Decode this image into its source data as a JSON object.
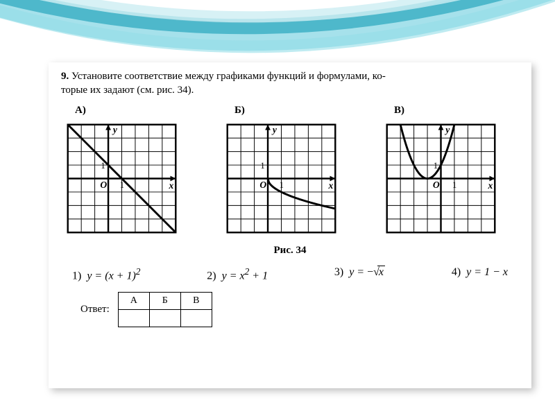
{
  "background": {
    "arc_colors": [
      "#4fbcd0",
      "#2aa6bd",
      "#1a8ba0",
      "#5cc8da"
    ],
    "card_bg": "#ffffff",
    "shadow": "rgba(0,0,0,0.25)"
  },
  "problem": {
    "number": "9.",
    "text_part1": "Установите соответствие между графиками функций и формулами, ко-",
    "text_part2": "торые их задают (см. рис. 34)."
  },
  "figure_caption": "Рис. 34",
  "graphs": {
    "cell_size": 20,
    "grid_cells": 8,
    "grid_color": "#000000",
    "axis_color": "#000000",
    "curve_color": "#000000",
    "curve_width": 3,
    "A": {
      "label": "А)",
      "origin_col": 3,
      "origin_row": 4,
      "curve": {
        "type": "line",
        "slope": -1,
        "intercept": 1,
        "domain": [
          -3,
          5
        ]
      },
      "axis_labels": {
        "x": "x",
        "y": "y",
        "O": "O",
        "tick_x": "1",
        "tick_y": "1"
      }
    },
    "B": {
      "label": "Б)",
      "origin_col": 3,
      "origin_row": 4,
      "curve": {
        "type": "neg_sqrt",
        "domain": [
          0,
          5
        ]
      },
      "axis_labels": {
        "x": "x",
        "y": "y",
        "O": "O",
        "tick_x": "1",
        "tick_y": "1"
      }
    },
    "V": {
      "label": "В)",
      "origin_col": 4,
      "origin_row": 4,
      "curve": {
        "type": "parabola_shifted",
        "h": -1,
        "k": 0,
        "domain": [
          -3.1,
          1.1
        ]
      },
      "axis_labels": {
        "x": "x",
        "y": "y",
        "O": "O",
        "tick_x": "1",
        "tick_y": "1"
      }
    }
  },
  "formulas": {
    "f1": {
      "n": "1)",
      "lhs": "y =",
      "rhs": "(x + 1)",
      "sup": "2"
    },
    "f2": {
      "n": "2)",
      "lhs": "y =",
      "rhs": "x",
      "sup": "2",
      "tail": " + 1"
    },
    "f3": {
      "n": "3)",
      "lhs": "y =",
      "neg": "−",
      "sqrt_of": "x"
    },
    "f4": {
      "n": "4)",
      "lhs": "y =",
      "rhs": "1 − x"
    }
  },
  "answer": {
    "label": "Ответ:",
    "headers": [
      "А",
      "Б",
      "В"
    ],
    "cells": [
      "",
      "",
      ""
    ]
  }
}
